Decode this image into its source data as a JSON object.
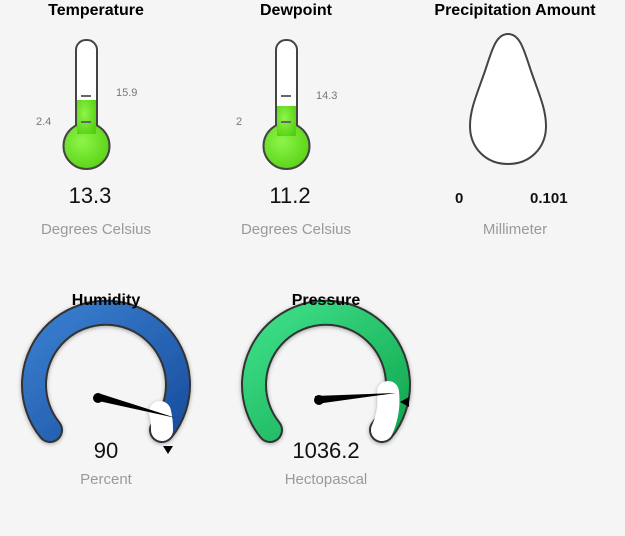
{
  "widgets": {
    "temperature": {
      "title": "Temperature",
      "value": "13.3",
      "unit": "Degrees Celsius",
      "min_label": "2.4",
      "max_label": "15.9",
      "fill_color": "#66e01a"
    },
    "dewpoint": {
      "title": "Dewpoint",
      "value": "11.2",
      "unit": "Degrees Celsius",
      "min_label": "2",
      "max_label": "14.3",
      "fill_color": "#66e01a"
    },
    "precipitation": {
      "title": "Precipitation Amount",
      "min_label": "0",
      "max_label": "0.101",
      "unit": "Millimeter"
    },
    "humidity": {
      "title": "Humidity",
      "value": "90",
      "unit": "Percent",
      "arc_color": "#2a67b8",
      "fraction": 0.9
    },
    "pressure": {
      "title": "Pressure",
      "value": "1036.2",
      "unit": "Hectopascal",
      "arc_color": "#1ebf62",
      "fraction": 0.78
    }
  }
}
